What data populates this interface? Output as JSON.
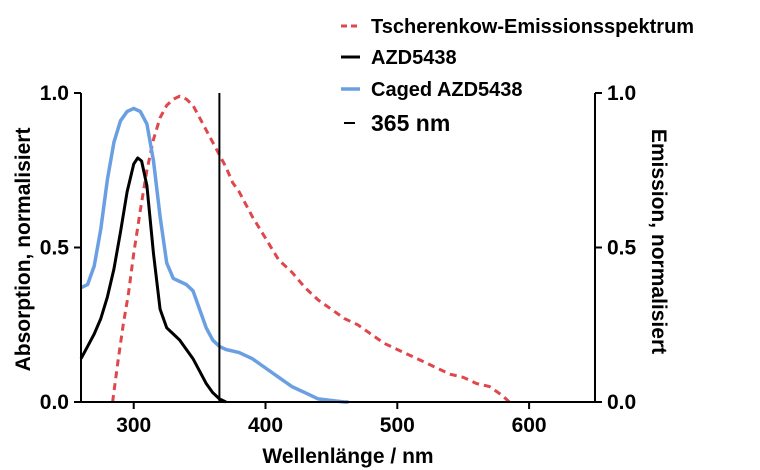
{
  "chart_data": {
    "type": "line",
    "xlabel": "Wellenlänge / nm",
    "ylabel_left": "Absorption, normalisiert",
    "ylabel_right": "Emission, normalisiert",
    "xlim": [
      260,
      650
    ],
    "ylim_left": [
      0,
      1.0
    ],
    "ylim_right": [
      0,
      1.0
    ],
    "x_ticks": [
      300,
      400,
      500,
      600
    ],
    "y_ticks_left": [
      "0.0",
      "0.5",
      "1.0"
    ],
    "y_ticks_right": [
      "0.0",
      "0.5",
      "1.0"
    ],
    "legend_position": "top-right",
    "series": [
      {
        "name": "Tscherenkow-Emissionsspektrum",
        "color": "#e0474c",
        "style": "dashed",
        "axis": "right",
        "x": [
          284,
          288,
          292,
          296,
          300,
          305,
          310,
          315,
          320,
          325,
          330,
          335,
          340,
          345,
          350,
          355,
          360,
          365,
          370,
          375,
          380,
          390,
          400,
          410,
          420,
          430,
          440,
          450,
          460,
          470,
          480,
          490,
          500,
          510,
          520,
          530,
          540,
          550,
          560,
          570,
          580,
          585
        ],
        "values": [
          0.0,
          0.13,
          0.25,
          0.35,
          0.48,
          0.62,
          0.75,
          0.85,
          0.92,
          0.96,
          0.98,
          0.99,
          0.98,
          0.96,
          0.92,
          0.88,
          0.84,
          0.8,
          0.76,
          0.71,
          0.68,
          0.6,
          0.53,
          0.46,
          0.42,
          0.37,
          0.33,
          0.3,
          0.27,
          0.25,
          0.22,
          0.19,
          0.17,
          0.15,
          0.13,
          0.11,
          0.09,
          0.08,
          0.06,
          0.05,
          0.02,
          0.0
        ]
      },
      {
        "name": "AZD5438",
        "color": "#000000",
        "style": "solid",
        "axis": "left",
        "x": [
          260,
          265,
          270,
          275,
          280,
          285,
          290,
          295,
          300,
          303,
          306,
          310,
          315,
          320,
          325,
          330,
          335,
          340,
          345,
          350,
          355,
          360,
          365,
          370
        ],
        "values": [
          0.14,
          0.18,
          0.22,
          0.27,
          0.34,
          0.43,
          0.55,
          0.68,
          0.77,
          0.79,
          0.78,
          0.7,
          0.48,
          0.3,
          0.24,
          0.22,
          0.2,
          0.17,
          0.14,
          0.1,
          0.06,
          0.03,
          0.01,
          0.0
        ]
      },
      {
        "name": "Caged AZD5438",
        "color": "#6a9fe2",
        "style": "solid",
        "axis": "left",
        "x": [
          260,
          265,
          270,
          275,
          280,
          285,
          290,
          295,
          300,
          305,
          310,
          315,
          320,
          325,
          330,
          335,
          340,
          345,
          350,
          355,
          360,
          365,
          370,
          380,
          390,
          400,
          410,
          420,
          430,
          440,
          450,
          460,
          463
        ],
        "values": [
          0.37,
          0.38,
          0.44,
          0.56,
          0.72,
          0.84,
          0.91,
          0.94,
          0.95,
          0.94,
          0.9,
          0.78,
          0.6,
          0.45,
          0.4,
          0.39,
          0.38,
          0.36,
          0.3,
          0.24,
          0.2,
          0.18,
          0.17,
          0.16,
          0.14,
          0.11,
          0.08,
          0.05,
          0.03,
          0.01,
          0.005,
          0.0,
          0.0
        ]
      },
      {
        "name": "365 nm",
        "color": "#000000",
        "style": "vline",
        "axis": "left",
        "x": [
          365,
          365
        ],
        "values": [
          0,
          1.0
        ]
      }
    ]
  }
}
